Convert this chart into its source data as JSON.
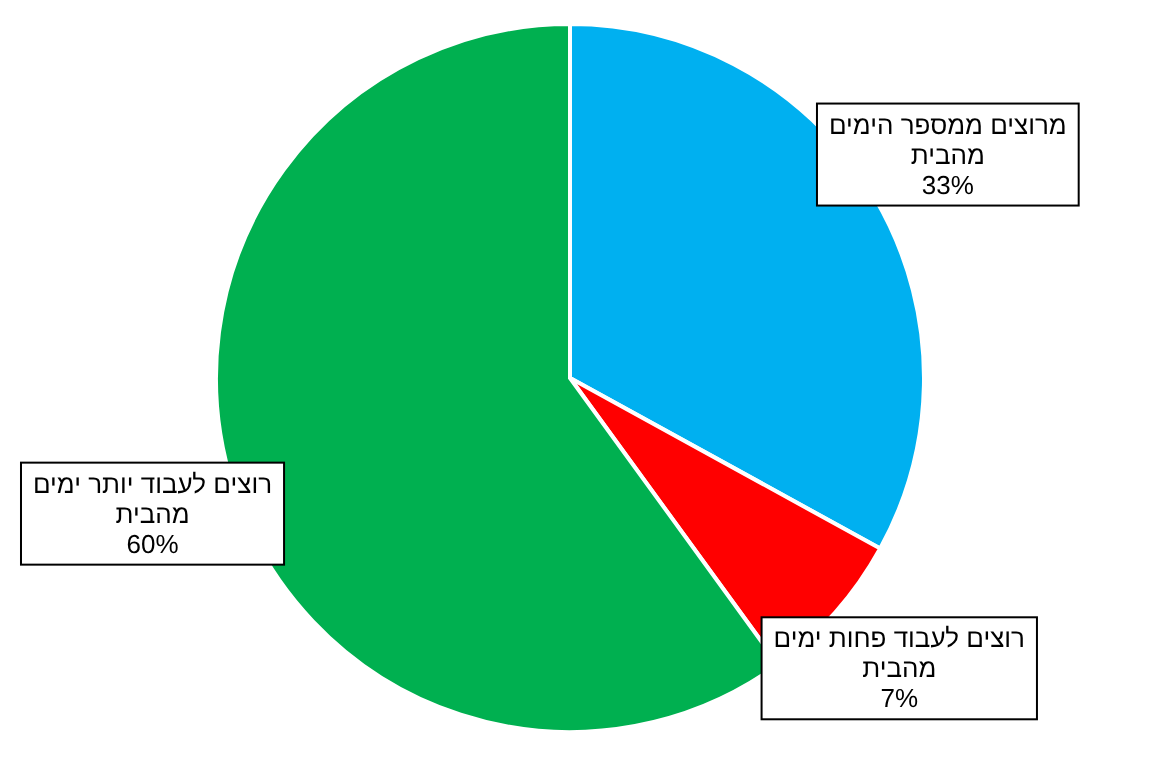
{
  "chart_data": {
    "type": "pie",
    "categories": [
      "מרוצים ממספר הימים מהבית",
      "רוצים לעבוד פחות ימים מהבית",
      "רוצים לעבוד יותר ימים מהבית"
    ],
    "values": [
      33,
      7,
      60
    ],
    "colors": [
      "#00b0f0",
      "#ff0000",
      "#00b050"
    ],
    "value_labels": [
      "33%",
      "7%",
      "60%"
    ]
  }
}
